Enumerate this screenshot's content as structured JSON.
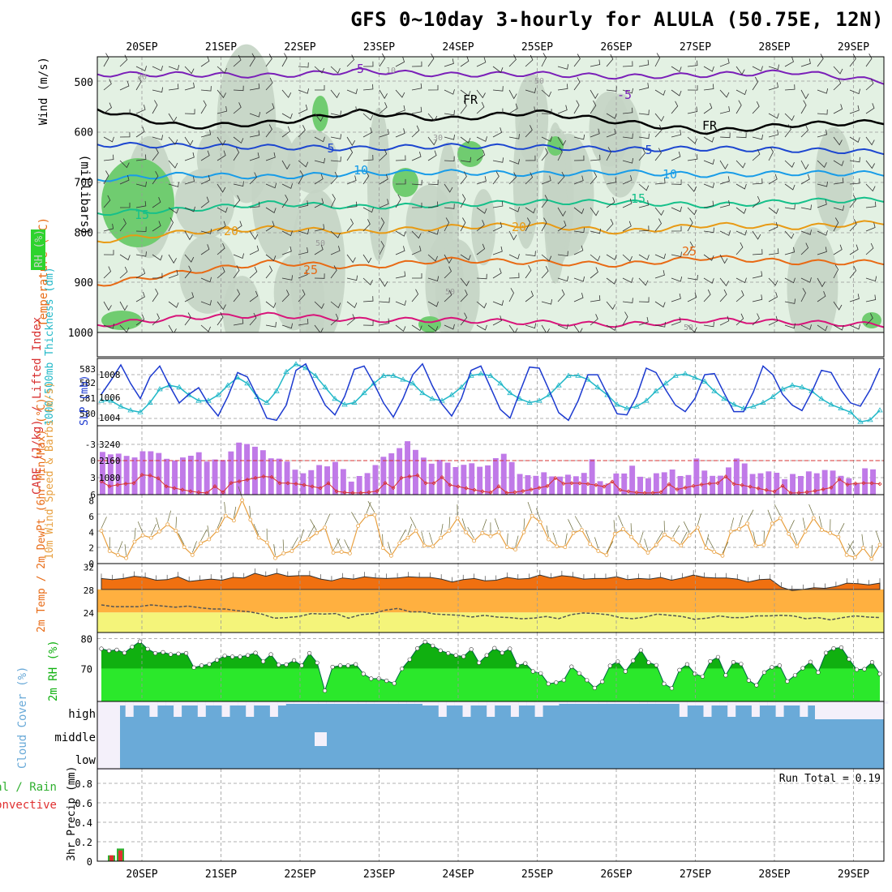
{
  "title": "GFS 0~10day 3-hourly for ALULA (50.75E, 12N)",
  "dates": [
    "20SEP",
    "21SEP",
    "22SEP",
    "23SEP",
    "24SEP",
    "25SEP",
    "26SEP",
    "27SEP",
    "28SEP",
    "29SEP"
  ],
  "colors": {
    "rh_light": "#e3f1e3",
    "rh_grey": "#c4d4c4",
    "rh_green": "#70cc70",
    "t_m5": "#7a1fb8",
    "t_fr": "#000000",
    "t_5": "#1c46d0",
    "t_10": "#189ce8",
    "t_15": "#15c08a",
    "t_20": "#e89a14",
    "t_25": "#e86a14",
    "t_30": "#d8147a",
    "sfc_temp": "#f07010",
    "sfc_mid": "#ffb040",
    "sfc_low": "#f4f47a",
    "rh_dark": "#10b010",
    "rh_bright": "#2be82b",
    "cloud": "#6aaad8",
    "cape": "#c07ae8",
    "li": "#d83030",
    "slp": "#1c3ad0",
    "thk": "#22b8c8",
    "wind": "#e8a040",
    "precip": "#30b030",
    "conv": "#e03030"
  },
  "chart_data": [
    {
      "type": "contour",
      "title": "Temperature / RH / Wind cross-section",
      "ylabel": "(millibars)",
      "y_ticks": [
        500,
        600,
        700,
        800,
        900,
        1000
      ],
      "ylim": [
        1000,
        450
      ],
      "legend": [
        "RH (%)",
        "Temperature (°C)",
        "Wind (m/s)"
      ],
      "contour_labels": [
        "-5",
        "FR",
        "5",
        "10",
        "15",
        "20",
        "25",
        "10"
      ],
      "rh_labels": [
        "30",
        "50",
        "10"
      ],
      "isotherms": [
        {
          "level": "-5",
          "pressure_mb": [
            485,
            485,
            488,
            478,
            486,
            484,
            490,
            486,
            480,
            500
          ]
        },
        {
          "level": "FR",
          "pressure_mb": [
            555,
            590,
            582,
            560,
            575,
            560,
            580,
            600,
            585,
            580
          ]
        },
        {
          "level": "5",
          "pressure_mb": [
            625,
            628,
            630,
            633,
            628,
            630,
            635,
            633,
            636,
            640
          ]
        },
        {
          "level": "10",
          "pressure_mb": [
            695,
            685,
            690,
            682,
            680,
            684,
            680,
            686,
            682,
            683
          ]
        },
        {
          "level": "15",
          "pressure_mb": [
            762,
            755,
            742,
            750,
            745,
            740,
            740,
            747,
            738,
            735
          ]
        },
        {
          "level": "20",
          "pressure_mb": [
            818,
            800,
            792,
            800,
            790,
            785,
            800,
            785,
            790,
            780
          ]
        },
        {
          "level": "25",
          "pressure_mb": [
            905,
            880,
            860,
            870,
            855,
            860,
            865,
            850,
            860,
            860
          ]
        },
        {
          "level": "30",
          "pressure_mb": [
            985,
            970,
            965,
            975,
            975,
            980,
            985,
            975,
            980,
            985
          ]
        }
      ]
    },
    {
      "type": "line",
      "title": "1000-500mb Thickness (dm) / SLP (mb)",
      "left_ticks": [
        580,
        581,
        582,
        583
      ],
      "right_ticks": [
        1004,
        1006,
        1008
      ],
      "series": [
        {
          "name": "SLP (mb)",
          "values": [
            1006.2,
            1007.5,
            1008.9,
            1007.2,
            1005.8,
            1007.8,
            1008.8,
            1007.0,
            1005.4,
            1006.2,
            1006.8,
            1005.3,
            1004.2,
            1006.0,
            1008.2,
            1007.8,
            1006.0,
            1004.0,
            1003.8,
            1005.2,
            1008.4,
            1009.0,
            1007.0,
            1005.2,
            1004.3,
            1006.0,
            1008.5,
            1008.8,
            1007.2,
            1005.4,
            1004.1,
            1005.8,
            1008.0,
            1009.0,
            1007.0,
            1005.3,
            1004.2,
            1005.8,
            1008.4,
            1008.8,
            1006.8,
            1004.8,
            1004.0,
            1006.4,
            1008.7,
            1008.6,
            1006.6,
            1004.5,
            1003.8,
            1005.6,
            1008.0,
            1008.0,
            1006.2,
            1004.4,
            1004.3,
            1006.0,
            1008.6,
            1008.2,
            1006.6,
            1005.2,
            1004.6,
            1005.8,
            1008.0,
            1008.1,
            1006.3,
            1004.6,
            1004.6,
            1006.4,
            1008.8,
            1008.0,
            1006.2,
            1005.2,
            1004.7,
            1006.4,
            1008.4,
            1008.2,
            1006.6,
            1005.4,
            1005.1,
            1006.6,
            1008.6
          ]
        },
        {
          "name": "1000-500mb Thickness (dm)",
          "values": [
            581.3,
            581.3,
            581.0,
            580.8,
            580.7,
            581.2,
            581.9,
            582.1,
            582.0,
            581.6,
            581.3,
            581.3,
            581.6,
            582.1,
            582.5,
            582.2,
            581.5,
            581.2,
            581.8,
            582.8,
            583.2,
            583.0,
            582.6,
            582.0,
            581.4,
            581.1,
            581.2,
            581.7,
            582.2,
            582.6,
            582.6,
            582.4,
            582.2,
            581.7,
            581.4,
            581.3,
            581.6,
            582.0,
            582.6,
            582.7,
            582.6,
            582.2,
            581.7,
            581.4,
            581.2,
            581.3,
            581.6,
            582.1,
            582.6,
            582.6,
            582.4,
            582.0,
            581.6,
            581.1,
            580.9,
            581.0,
            581.3,
            581.8,
            582.2,
            582.6,
            582.7,
            582.5,
            582.3,
            581.8,
            581.4,
            581.1,
            580.9,
            581.0,
            581.2,
            581.5,
            581.9,
            582.1,
            582.0,
            581.8,
            581.4,
            581.1,
            580.9,
            580.7,
            580.2,
            580.3,
            580.8
          ]
        }
      ]
    },
    {
      "type": "bar+line",
      "title": "CAPE (J/kg) / Lifted Index",
      "left_ticks": [
        -3,
        0,
        3,
        6
      ],
      "right_ticks": [
        1080,
        2160,
        3240
      ],
      "cape": [
        2480,
        2340,
        2380,
        2250,
        2160,
        2520,
        2520,
        2420,
        2080,
        1980,
        2160,
        2260,
        2460,
        1920,
        2040,
        2010,
        2510,
        3020,
        2940,
        2780,
        2580,
        2110,
        2090,
        1920,
        1450,
        1240,
        1420,
        1720,
        1640,
        1900,
        1480,
        760,
        1080,
        1250,
        1720,
        2200,
        2400,
        2700,
        3100,
        2600,
        2150,
        1800,
        2020,
        1860,
        1600,
        1730,
        1820,
        1620,
        1700,
        2120,
        2370,
        1890,
        1200,
        1130,
        1090,
        1300,
        1060,
        1050,
        1160,
        1070,
        1260,
        2050,
        780,
        650,
        1230,
        1230,
        1680,
        1040,
        950,
        1240,
        1300,
        1460,
        1080,
        1140,
        2100,
        1400,
        1090,
        1100,
        1580,
        2100,
        1810,
        1200,
        1240,
        1350,
        1270,
        900,
        1200,
        1080,
        1350,
        1240,
        1430,
        1400,
        1090,
        950,
        650,
        1530,
        1470
      ]
    },
    {
      "type": "line",
      "title": "10m Wind Speed & Barbs (m/s)",
      "y_ticks": [
        0,
        2,
        4,
        6,
        8
      ],
      "values": [
        4.2,
        1.6,
        1.1,
        0.7,
        2.8,
        3.6,
        3.3,
        4.1,
        5.0,
        4.2,
        2.1,
        1.1,
        2.6,
        3.1,
        4.2,
        6.1,
        5.5,
        8.1,
        5.6,
        3.3,
        2.7,
        0.7,
        1.3,
        1.6,
        2.6,
        3.1,
        3.9,
        4.6,
        1.4,
        1.5,
        1.3,
        4.8,
        6.1,
        6.2,
        2.0,
        1.0,
        2.6,
        3.3,
        4.2,
        2.3,
        2.2,
        3.3,
        4.2,
        5.8,
        4.0,
        2.9,
        3.9,
        3.5,
        4.0,
        2.1,
        1.8,
        4.0,
        6.1,
        5.3,
        3.1,
        2.2,
        2.1,
        3.9,
        4.3,
        2.5,
        1.6,
        1.1,
        3.8,
        4.4,
        3.4,
        2.3,
        1.4,
        2.4,
        3.7,
        3.1,
        2.3,
        3.6,
        4.6,
        2.0,
        1.5,
        1.0,
        4.1,
        4.4,
        5.1,
        2.3,
        2.4,
        5.1,
        5.8,
        3.8,
        2.2,
        4.1,
        5.8,
        4.3,
        3.9,
        3.4,
        1.1,
        0.8,
        2.0,
        0.6,
        2.4
      ]
    },
    {
      "type": "area",
      "title": "2m Temp / 2m DewPt (6hr Min/Max) (°C)",
      "y_ticks": [
        24,
        28,
        32
      ],
      "temp": [
        29.9,
        29.7,
        29.9,
        30.3,
        30.1,
        29.6,
        29.7,
        30.2,
        29.4,
        29.6,
        29.8,
        29.6,
        30.1,
        30.0,
        30.8,
        30.3,
        30.8,
        30.3,
        30.4,
        30.4,
        29.8,
        29.5,
        30.0,
        29.8,
        30.2,
        30.0,
        29.9,
        30.0,
        30.2,
        30.1,
        30.1,
        29.8,
        29.3,
        29.7,
        29.9,
        29.5,
        29.6,
        30.1,
        29.8,
        29.9,
        30.5,
        30.0,
        30.4,
        30.2,
        29.8,
        29.9,
        29.9,
        30.2,
        29.7,
        29.9,
        29.8,
        30.1,
        29.6,
        30.0,
        30.5,
        30.1,
        30.0,
        30.0,
        29.8,
        29.3,
        29.7,
        29.8,
        28.4,
        27.8,
        28.0,
        28.3,
        28.2,
        28.5,
        29.1,
        29.0,
        28.8,
        29.1
      ],
      "dewpt": [
        25.3,
        25.0,
        25.0,
        25.0,
        25.3,
        25.1,
        24.9,
        25.1,
        24.8,
        24.6,
        24.6,
        24.3,
        24.1,
        23.7,
        23.0,
        23.1,
        23.3,
        23.8,
        23.7,
        23.8,
        23.0,
        23.6,
        23.8,
        24.4,
        24.7,
        24.1,
        24.1,
        23.7,
        23.6,
        23.5,
        23.2,
        23.5,
        23.2,
        23.1,
        22.9,
        23.0,
        23.3,
        22.9,
        23.6,
        23.9,
        23.8,
        23.6,
        23.1,
        22.9,
        23.2,
        23.7,
        23.5,
        23.3,
        22.8,
        23.0,
        23.4,
        23.1,
        23.1,
        23.4,
        23.4,
        23.5,
        23.4,
        22.9,
        23.1,
        22.7,
        23.1,
        23.4,
        23.2,
        23.1
      ]
    },
    {
      "type": "area",
      "title": "2m RH (%)",
      "y_ticks": [
        70,
        80
      ],
      "values": [
        76.6,
        75.9,
        76.2,
        75.2,
        77.2,
        79.0,
        76.5,
        75.1,
        75.4,
        74.7,
        74.9,
        75.1,
        70.3,
        71.0,
        71.4,
        72.8,
        74.2,
        73.9,
        73.9,
        74.4,
        75.2,
        72.3,
        74.7,
        71.2,
        71.3,
        72.7,
        71.0,
        75.1,
        71.9,
        62.6,
        70.5,
        71.0,
        71.0,
        71.4,
        68.2,
        66.6,
        66.6,
        65.9,
        65.0,
        69.9,
        73.0,
        76.7,
        78.9,
        77.6,
        76.0,
        75.1,
        74.4,
        74.0,
        76.4,
        71.9,
        74.4,
        76.8,
        75.2,
        76.6,
        71.0,
        71.7,
        69.0,
        68.4,
        64.9,
        65.3,
        66.1,
        70.6,
        68.4,
        66.1,
        63.5,
        65.6,
        70.9,
        72.3,
        69.0,
        72.6,
        76.1,
        72.0,
        71.1,
        64.9,
        63.4,
        69.5,
        71.4,
        68.2,
        67.3,
        72.4,
        73.8,
        67.7,
        72.1,
        71.5,
        66.0,
        64.4,
        68.7,
        70.4,
        71.0,
        65.7,
        67.7,
        70.1,
        72.2,
        68.7,
        75.2,
        76.7,
        77.0,
        73.1,
        69.6,
        69.8,
        72.1,
        68.2
      ]
    },
    {
      "type": "area",
      "title": "Cloud Cover (%)",
      "y_labels": [
        "high",
        "middle",
        "low"
      ]
    },
    {
      "type": "bar",
      "title": "3hr Precip (mm)",
      "legend": [
        "Total / Rain",
        "Convective"
      ],
      "y_ticks": [
        0,
        0.2,
        0.4,
        0.6,
        0.8
      ],
      "annotation": "Run Total = 0.19",
      "total": [
        0.06,
        0.13
      ],
      "convective": [
        0.06,
        0.11
      ]
    }
  ]
}
